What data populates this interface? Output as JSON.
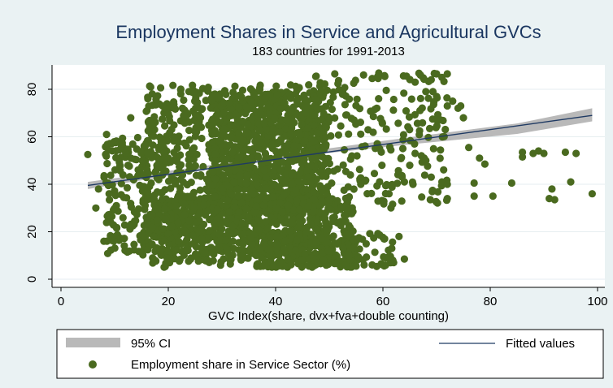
{
  "chart_data": {
    "type": "scatter",
    "title": "Employment Shares in Service and Agricultural GVCs",
    "subtitle": "183 countries for 1991-2013",
    "xlabel": "GVC Index(share, dvx+fva+double counting)",
    "ylabel": "",
    "xlim": [
      0,
      100
    ],
    "ylim": [
      0,
      88
    ],
    "x_ticks": [
      "0",
      "20",
      "40",
      "60",
      "80",
      "100"
    ],
    "y_ticks": [
      "0",
      "20",
      "40",
      "60",
      "80"
    ],
    "grid": true,
    "legend_position": "bottom",
    "colors": {
      "points": "#4a6a1f",
      "fit_line": "#1f3a63",
      "ci_band": "#b9b9b9",
      "title": "#1a3660",
      "background": "#eaf2f3"
    },
    "fitted_line": {
      "name": "Fitted values",
      "x": [
        5,
        99
      ],
      "y": [
        39.5,
        69
      ]
    },
    "confidence_band": {
      "name": "95% CI",
      "x": [
        5,
        25,
        45,
        65,
        85,
        99
      ],
      "lower": [
        38.0,
        45.3,
        52.0,
        56.8,
        61.2,
        66.5
      ],
      "upper": [
        41.0,
        47.2,
        53.6,
        59.8,
        65.6,
        72.0
      ]
    },
    "scatter": {
      "name": "Employment share in Service Sector (%)",
      "dense_regions": [
        {
          "x_min": 15,
          "x_max": 50,
          "y_min": 10,
          "y_max": 82,
          "count": 900
        },
        {
          "x_min": 17,
          "x_max": 55,
          "y_min": 5,
          "y_max": 35,
          "count": 600
        },
        {
          "x_min": 8,
          "x_max": 20,
          "y_min": 10,
          "y_max": 60,
          "count": 180
        },
        {
          "x_min": 45,
          "x_max": 72,
          "y_min": 30,
          "y_max": 87,
          "count": 220
        },
        {
          "x_min": 40,
          "x_max": 62,
          "y_min": 5,
          "y_max": 20,
          "count": 120
        },
        {
          "x_min": 28,
          "x_max": 48,
          "y_min": 28,
          "y_max": 78,
          "count": 600
        }
      ],
      "points": [
        {
          "x": 5,
          "y": 52.5
        },
        {
          "x": 8.5,
          "y": 61
        },
        {
          "x": 7,
          "y": 38
        },
        {
          "x": 6.5,
          "y": 30
        },
        {
          "x": 8,
          "y": 16
        },
        {
          "x": 9,
          "y": 27
        },
        {
          "x": 12.5,
          "y": 48
        },
        {
          "x": 13,
          "y": 68
        },
        {
          "x": 58,
          "y": 6
        },
        {
          "x": 60,
          "y": 6
        },
        {
          "x": 62,
          "y": 7
        },
        {
          "x": 64,
          "y": 8.5
        },
        {
          "x": 55,
          "y": 5.5
        },
        {
          "x": 56.5,
          "y": 6
        },
        {
          "x": 63,
          "y": 18
        },
        {
          "x": 64,
          "y": 41
        },
        {
          "x": 65,
          "y": 48
        },
        {
          "x": 66,
          "y": 53
        },
        {
          "x": 68,
          "y": 50
        },
        {
          "x": 69,
          "y": 43
        },
        {
          "x": 71,
          "y": 41
        },
        {
          "x": 72,
          "y": 34
        },
        {
          "x": 72,
          "y": 40
        },
        {
          "x": 73,
          "y": 75
        },
        {
          "x": 74,
          "y": 72
        },
        {
          "x": 75,
          "y": 68
        },
        {
          "x": 74.5,
          "y": 73
        },
        {
          "x": 70,
          "y": 86.5
        },
        {
          "x": 71,
          "y": 85
        },
        {
          "x": 72,
          "y": 86.5
        },
        {
          "x": 69,
          "y": 84
        },
        {
          "x": 67,
          "y": 86
        },
        {
          "x": 66,
          "y": 83
        },
        {
          "x": 68,
          "y": 79
        },
        {
          "x": 70,
          "y": 77
        },
        {
          "x": 72,
          "y": 73
        },
        {
          "x": 76,
          "y": 55.5
        },
        {
          "x": 77,
          "y": 40.5
        },
        {
          "x": 77,
          "y": 35
        },
        {
          "x": 78,
          "y": 51
        },
        {
          "x": 79,
          "y": 48.5
        },
        {
          "x": 80.5,
          "y": 35
        },
        {
          "x": 84,
          "y": 40.5
        },
        {
          "x": 86,
          "y": 51.5
        },
        {
          "x": 86,
          "y": 53.5
        },
        {
          "x": 88,
          "y": 53
        },
        {
          "x": 89,
          "y": 54
        },
        {
          "x": 90,
          "y": 53
        },
        {
          "x": 91,
          "y": 34
        },
        {
          "x": 92,
          "y": 33.5
        },
        {
          "x": 91.5,
          "y": 38
        },
        {
          "x": 94,
          "y": 53.5
        },
        {
          "x": 95,
          "y": 41
        },
        {
          "x": 96,
          "y": 53
        },
        {
          "x": 99,
          "y": 36
        }
      ]
    }
  },
  "legend": {
    "ci_label": "95% CI",
    "fitted_label": "Fitted values",
    "scatter_label": "Employment share in Service Sector (%)"
  }
}
